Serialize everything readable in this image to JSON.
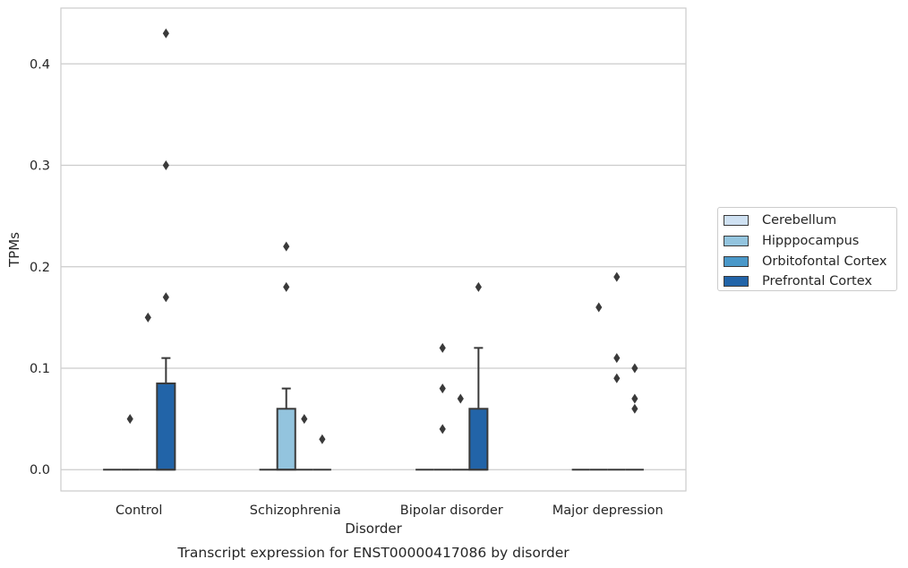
{
  "chart_data": {
    "type": "box",
    "title": "Transcript expression for ENST00000417086 by disorder",
    "xlabel": "Disorder",
    "ylabel": "TPMs",
    "ylim": [
      -0.021,
      0.455
    ],
    "yticks": [
      "0.0",
      "0.1",
      "0.2",
      "0.3",
      "0.4"
    ],
    "grid": true,
    "legend_position": "right",
    "categories": [
      "Control",
      "Schizophrenia",
      "Bipolar disorder",
      "Major depression"
    ],
    "series": [
      {
        "name": "Cerebellum",
        "color": "#cfe1f2",
        "boxes": [
          {
            "q1": 0,
            "median": 0,
            "q3": 0,
            "whisker_low": 0,
            "whisker_high": 0,
            "outliers": []
          },
          {
            "q1": 0,
            "median": 0,
            "q3": 0,
            "whisker_low": 0,
            "whisker_high": 0,
            "outliers": []
          },
          {
            "q1": 0,
            "median": 0,
            "q3": 0,
            "whisker_low": 0,
            "whisker_high": 0,
            "outliers": []
          },
          {
            "q1": 0,
            "median": 0,
            "q3": 0,
            "whisker_low": 0,
            "whisker_high": 0,
            "outliers": []
          }
        ]
      },
      {
        "name": "Hipppocampus",
        "color": "#93c4de",
        "boxes": [
          {
            "q1": 0,
            "median": 0,
            "q3": 0,
            "whisker_low": 0,
            "whisker_high": 0,
            "outliers": [
              0.05
            ]
          },
          {
            "q1": 0,
            "median": 0,
            "q3": 0.06,
            "whisker_low": 0,
            "whisker_high": 0.08,
            "outliers": [
              0.18,
              0.22
            ]
          },
          {
            "q1": 0,
            "median": 0,
            "q3": 0,
            "whisker_low": 0,
            "whisker_high": 0,
            "outliers": [
              0.04,
              0.08,
              0.12
            ]
          },
          {
            "q1": 0,
            "median": 0,
            "q3": 0,
            "whisker_low": 0,
            "whisker_high": 0,
            "outliers": [
              0.16
            ]
          }
        ]
      },
      {
        "name": "Orbitofontal Cortex",
        "color": "#4a98c9",
        "boxes": [
          {
            "q1": 0,
            "median": 0,
            "q3": 0,
            "whisker_low": 0,
            "whisker_high": 0,
            "outliers": [
              0.15
            ]
          },
          {
            "q1": 0,
            "median": 0,
            "q3": 0,
            "whisker_low": 0,
            "whisker_high": 0,
            "outliers": [
              0.05
            ]
          },
          {
            "q1": 0,
            "median": 0,
            "q3": 0,
            "whisker_low": 0,
            "whisker_high": 0,
            "outliers": [
              0.07
            ]
          },
          {
            "q1": 0,
            "median": 0,
            "q3": 0,
            "whisker_low": 0,
            "whisker_high": 0,
            "outliers": [
              0.09,
              0.11,
              0.19
            ]
          }
        ]
      },
      {
        "name": "Prefrontal Cortex",
        "color": "#2264a8",
        "boxes": [
          {
            "q1": 0,
            "median": 0,
            "q3": 0.085,
            "whisker_low": 0,
            "whisker_high": 0.11,
            "outliers": [
              0.17,
              0.3,
              0.43
            ]
          },
          {
            "q1": 0,
            "median": 0,
            "q3": 0,
            "whisker_low": 0,
            "whisker_high": 0,
            "outliers": [
              0.03
            ]
          },
          {
            "q1": 0,
            "median": 0,
            "q3": 0.06,
            "whisker_low": 0,
            "whisker_high": 0.12,
            "outliers": [
              0.18
            ]
          },
          {
            "q1": 0,
            "median": 0,
            "q3": 0,
            "whisker_low": 0,
            "whisker_high": 0,
            "outliers": [
              0.06,
              0.07,
              0.1
            ]
          }
        ]
      }
    ]
  }
}
